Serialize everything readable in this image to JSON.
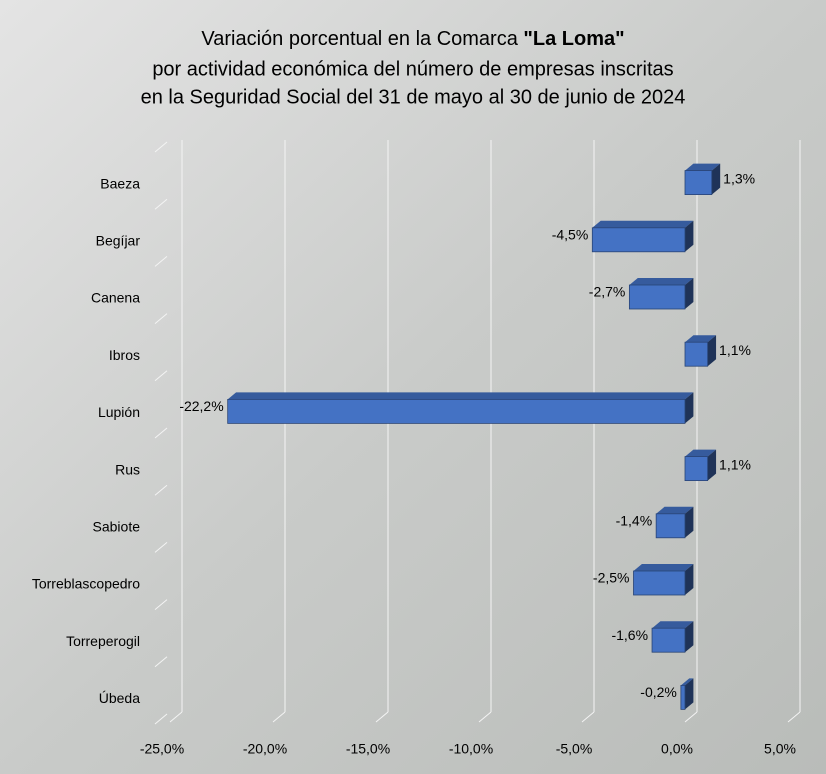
{
  "chart_data": {
    "type": "bar",
    "orientation": "horizontal",
    "title": "Variación porcentual en la Comarca",
    "title_emphasis": "\"La Loma\"",
    "subtitle": [
      "por actividad económica del número de empresas inscritas",
      "en la Seguridad Social del 31 de mayo al 30 de junio de 2024"
    ],
    "categories": [
      "Baeza",
      "Begíjar",
      "Canena",
      "Ibros",
      "Lupión",
      "Rus",
      "Sabiote",
      "Torreblascopedro",
      "Torreperogil",
      "Úbeda"
    ],
    "values": [
      1.3,
      -4.5,
      -2.7,
      1.1,
      -22.2,
      1.1,
      -1.4,
      -2.5,
      -1.6,
      -0.2
    ],
    "value_labels": [
      "1,3%",
      "-4,5%",
      "-2,7%",
      "1,1%",
      "-22,2%",
      "1,1%",
      "-1,4%",
      "-2,5%",
      "-1,6%",
      "-0,2%"
    ],
    "color": "#4472c4",
    "xlim": [
      -25,
      5
    ],
    "xticks": [
      {
        "value": -25,
        "label": "-25,0%"
      },
      {
        "value": -20,
        "label": "-20,0%"
      },
      {
        "value": -15,
        "label": "-15,0%"
      },
      {
        "value": -10,
        "label": "-10,0%"
      },
      {
        "value": -5,
        "label": "-5,0%"
      },
      {
        "value": 0,
        "label": "0,0%"
      },
      {
        "value": 5,
        "label": "5,0%"
      }
    ],
    "grid": true
  }
}
